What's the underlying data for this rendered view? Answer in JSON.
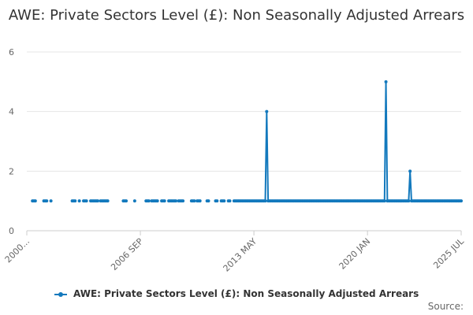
{
  "chart_data": {
    "type": "line",
    "title": "AWE: Private Sectors Level (£): Non Seasonally Adjusted Arrears",
    "xlabel": "",
    "ylabel": "",
    "x_tick_labels": [
      "2000...",
      "2006 SEP",
      "2013 MAY",
      "2020 JAN",
      "2025 JUL"
    ],
    "x_tick_months": [
      0,
      80,
      160,
      240,
      306
    ],
    "ylim": [
      0,
      6
    ],
    "y_ticks": [
      0,
      2,
      4,
      6
    ],
    "grid": "horizontal",
    "legend_position": "bottom",
    "color": "#1379bd",
    "credit": "Source:",
    "series": [
      {
        "name": "AWE: Private Sectors Level (£): Non Seasonally Adjusted Arrears",
        "x_start": "2000-01",
        "x_end": "2025-07",
        "baseline": 1,
        "present_months": [
          [
            4,
            6
          ],
          [
            12,
            14
          ],
          [
            17,
            17
          ],
          [
            32,
            34
          ],
          [
            37,
            37
          ],
          [
            40,
            42
          ],
          [
            45,
            50
          ],
          [
            52,
            57
          ],
          [
            68,
            70
          ],
          [
            76,
            76
          ],
          [
            84,
            86
          ],
          [
            88,
            92
          ],
          [
            95,
            97
          ],
          [
            100,
            105
          ],
          [
            107,
            110
          ],
          [
            116,
            118
          ],
          [
            120,
            122
          ],
          [
            127,
            128
          ],
          [
            133,
            134
          ],
          [
            137,
            139
          ],
          [
            142,
            143
          ],
          [
            146,
            306
          ]
        ],
        "spikes": [
          {
            "month": 169,
            "value": 4
          },
          {
            "month": 253,
            "value": 5
          },
          {
            "month": 270,
            "value": 2
          }
        ]
      }
    ]
  }
}
